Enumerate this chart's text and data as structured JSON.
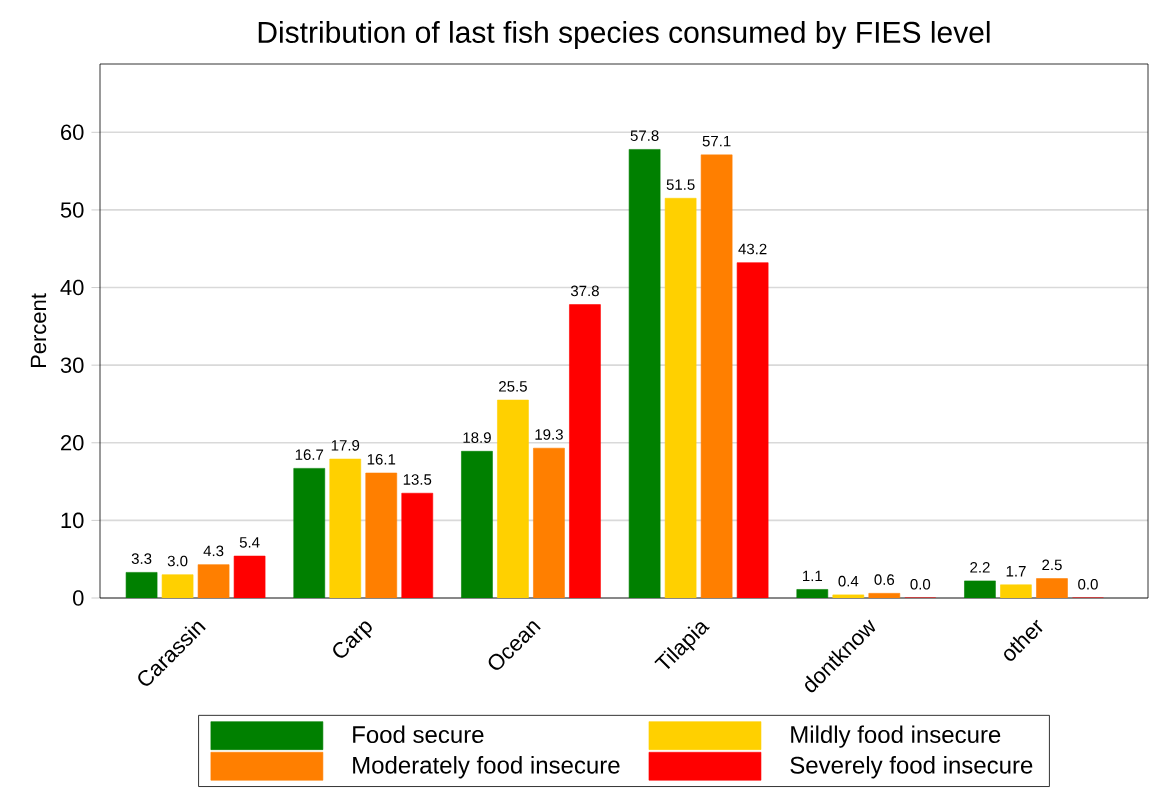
{
  "chart_data": {
    "type": "bar",
    "title": "Distribution of last fish species consumed by FIES level",
    "ylabel": "Percent",
    "categories": [
      "Carassin",
      "Carp",
      "Ocean",
      "Tilapia",
      "dontknow",
      "other"
    ],
    "series": [
      {
        "name": "Food secure",
        "color": "#008000",
        "values": [
          3.3,
          16.7,
          18.9,
          57.8,
          1.1,
          2.2
        ],
        "value_labels": [
          "3.3",
          "16.7",
          "18.9",
          "57.8",
          "1.1",
          "2.2"
        ]
      },
      {
        "name": "Mildly food insecure",
        "color": "#ffd000",
        "values": [
          3.0,
          17.9,
          25.5,
          51.5,
          0.4,
          1.7
        ],
        "value_labels": [
          "3.0",
          "17.9",
          "25.5",
          "51.5",
          "0.4",
          "1.7"
        ]
      },
      {
        "name": "Moderately food insecure",
        "color": "#ff7f00",
        "values": [
          4.3,
          16.1,
          19.3,
          57.1,
          0.6,
          2.5
        ],
        "value_labels": [
          "4.3",
          "16.1",
          "19.3",
          "57.1",
          "0.6",
          "2.5"
        ]
      },
      {
        "name": "Severely food insecure",
        "color": "#ff0000",
        "values": [
          5.4,
          13.5,
          37.8,
          43.2,
          0.0,
          0.0
        ],
        "value_labels": [
          "5.4",
          "13.5",
          "37.8",
          "43.2",
          "0.0",
          "0.0"
        ]
      }
    ],
    "ylim": [
      0,
      68.8
    ],
    "yticks": [
      0,
      10,
      20,
      30,
      40,
      50,
      60
    ],
    "grid": "y",
    "legend": "bottom"
  }
}
